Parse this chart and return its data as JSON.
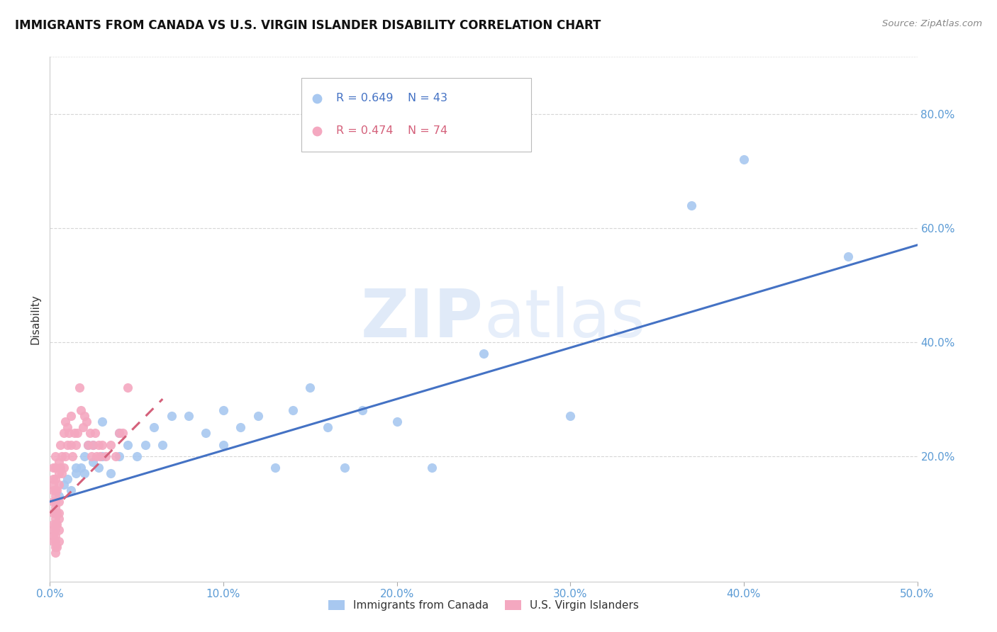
{
  "title": "IMMIGRANTS FROM CANADA VS U.S. VIRGIN ISLANDER DISABILITY CORRELATION CHART",
  "source": "Source: ZipAtlas.com",
  "ylabel": "Disability",
  "xlim": [
    0.0,
    0.5
  ],
  "ylim": [
    -0.02,
    0.9
  ],
  "canada_R": 0.649,
  "canada_N": 43,
  "virgin_R": 0.474,
  "virgin_N": 74,
  "canada_color": "#a8c8f0",
  "virgin_color": "#f4a8c0",
  "canada_line_color": "#4472c4",
  "virgin_line_color": "#d4607a",
  "canada_scatter_x": [
    0.005,
    0.008,
    0.01,
    0.012,
    0.015,
    0.015,
    0.018,
    0.02,
    0.02,
    0.022,
    0.025,
    0.025,
    0.028,
    0.03,
    0.03,
    0.035,
    0.04,
    0.04,
    0.045,
    0.05,
    0.055,
    0.06,
    0.065,
    0.07,
    0.08,
    0.09,
    0.1,
    0.1,
    0.11,
    0.12,
    0.13,
    0.14,
    0.15,
    0.16,
    0.17,
    0.18,
    0.2,
    0.22,
    0.25,
    0.3,
    0.37,
    0.4,
    0.46
  ],
  "canada_scatter_y": [
    0.13,
    0.15,
    0.16,
    0.14,
    0.18,
    0.17,
    0.18,
    0.17,
    0.2,
    0.22,
    0.19,
    0.22,
    0.18,
    0.2,
    0.26,
    0.17,
    0.2,
    0.24,
    0.22,
    0.2,
    0.22,
    0.25,
    0.22,
    0.27,
    0.27,
    0.24,
    0.22,
    0.28,
    0.25,
    0.27,
    0.18,
    0.28,
    0.32,
    0.25,
    0.18,
    0.28,
    0.26,
    0.18,
    0.38,
    0.27,
    0.64,
    0.72,
    0.55
  ],
  "virgin_scatter_x": [
    0.002,
    0.002,
    0.002,
    0.002,
    0.002,
    0.002,
    0.002,
    0.002,
    0.002,
    0.002,
    0.003,
    0.003,
    0.003,
    0.003,
    0.003,
    0.003,
    0.003,
    0.003,
    0.003,
    0.003,
    0.003,
    0.003,
    0.003,
    0.003,
    0.003,
    0.004,
    0.004,
    0.004,
    0.004,
    0.005,
    0.005,
    0.005,
    0.005,
    0.005,
    0.005,
    0.005,
    0.005,
    0.006,
    0.006,
    0.007,
    0.007,
    0.008,
    0.008,
    0.009,
    0.009,
    0.01,
    0.01,
    0.011,
    0.012,
    0.012,
    0.013,
    0.014,
    0.015,
    0.016,
    0.017,
    0.018,
    0.019,
    0.02,
    0.021,
    0.022,
    0.023,
    0.024,
    0.025,
    0.026,
    0.027,
    0.028,
    0.029,
    0.03,
    0.032,
    0.035,
    0.038,
    0.04,
    0.042,
    0.045
  ],
  "virgin_scatter_y": [
    0.08,
    0.1,
    0.12,
    0.14,
    0.15,
    0.16,
    0.18,
    0.06,
    0.07,
    0.05,
    0.06,
    0.08,
    0.1,
    0.12,
    0.14,
    0.16,
    0.18,
    0.2,
    0.05,
    0.07,
    0.09,
    0.11,
    0.13,
    0.03,
    0.04,
    0.08,
    0.1,
    0.14,
    0.04,
    0.05,
    0.07,
    0.09,
    0.1,
    0.12,
    0.15,
    0.17,
    0.19,
    0.18,
    0.22,
    0.17,
    0.2,
    0.18,
    0.24,
    0.2,
    0.26,
    0.22,
    0.25,
    0.24,
    0.27,
    0.22,
    0.2,
    0.24,
    0.22,
    0.24,
    0.32,
    0.28,
    0.25,
    0.27,
    0.26,
    0.22,
    0.24,
    0.2,
    0.22,
    0.24,
    0.2,
    0.22,
    0.2,
    0.22,
    0.2,
    0.22,
    0.2,
    0.24,
    0.24,
    0.32
  ],
  "canada_line_x": [
    0.0,
    0.5
  ],
  "canada_line_y": [
    0.12,
    0.57
  ],
  "virgin_line_x": [
    0.0,
    0.065
  ],
  "virgin_line_y": [
    0.1,
    0.3
  ],
  "watermark_text": "ZIPatlas",
  "background_color": "#ffffff",
  "grid_color": "#cccccc",
  "tick_color": "#5b9bd5",
  "text_color": "#333333"
}
